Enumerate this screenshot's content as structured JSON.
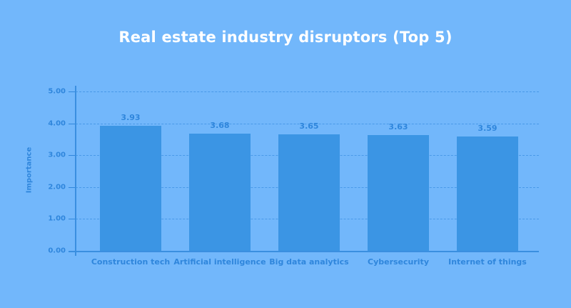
{
  "chart_data": {
    "type": "bar",
    "title": "Real estate industry disruptors (Top 5)",
    "xlabel": "",
    "ylabel": "Importance",
    "categories": [
      "Construction tech",
      "Artificial intelligence",
      "Big data analytics",
      "Cybersecurity",
      "Internet of things"
    ],
    "values": [
      3.93,
      3.68,
      3.65,
      3.63,
      3.59
    ],
    "value_labels": [
      "3.93",
      "3.68",
      "3.65",
      "3.63",
      "3.59"
    ],
    "ylim": [
      0,
      5
    ],
    "yticks": [
      "5.00",
      "4.00",
      "3.00",
      "2.00",
      "1.00",
      "0.00"
    ],
    "grid": true,
    "legend": null,
    "colors": {
      "background": "#72b7fb",
      "bar": "#3b95e4",
      "text": "#2f86dc",
      "title": "#ffffff"
    }
  }
}
